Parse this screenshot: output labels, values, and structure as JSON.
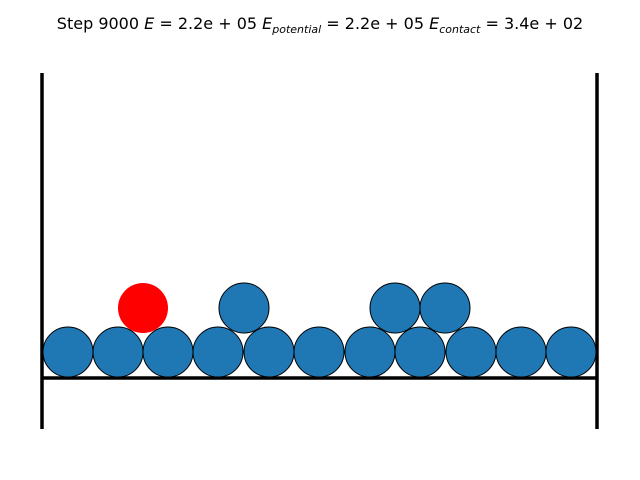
{
  "header": {
    "step": "Step 9000",
    "terms": [
      {
        "symbol": "E",
        "value": "= 2.2e + 05"
      },
      {
        "symbol": "E",
        "subscript": "potential",
        "value": "= 2.2e + 05"
      },
      {
        "symbol": "E",
        "subscript": "contact",
        "value": "= 3.4e + 02"
      }
    ]
  }
}
